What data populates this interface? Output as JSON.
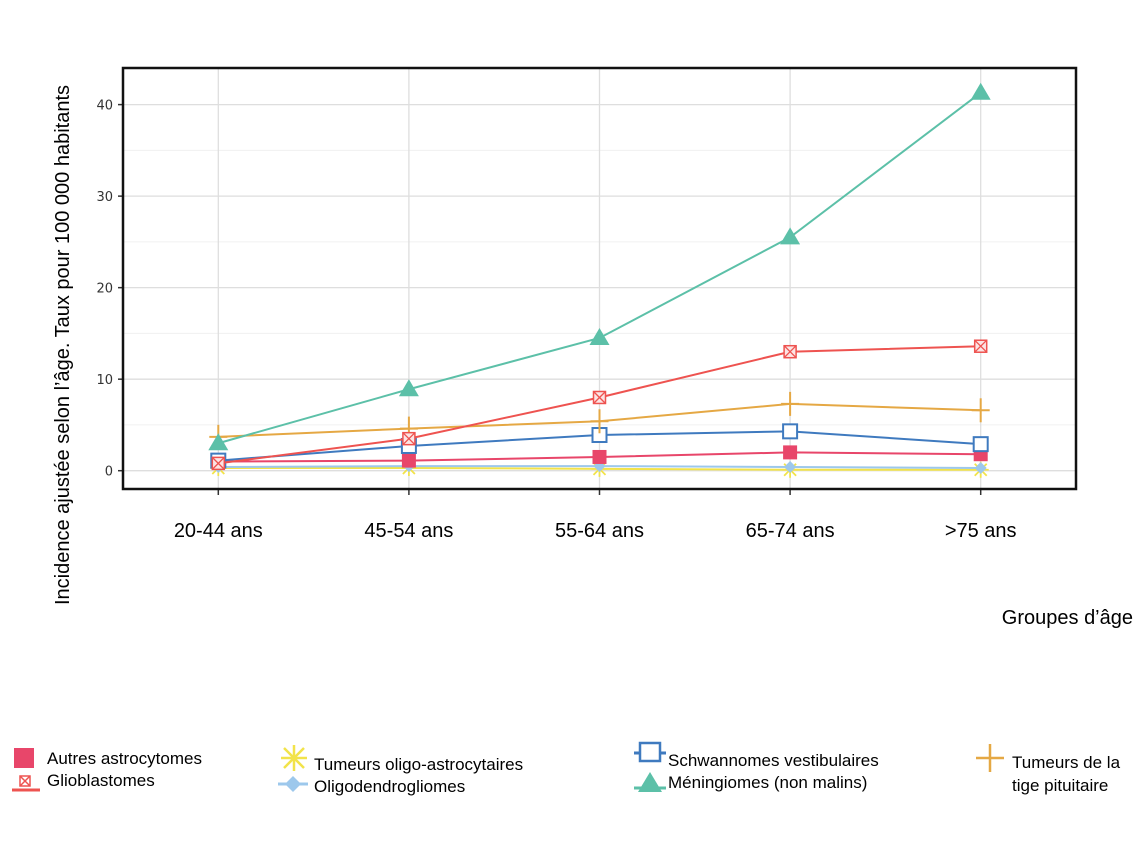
{
  "chart_data": {
    "type": "line",
    "title": "",
    "ylabel": "Incidence ajustée selon l’âge. Taux pour 100 000 habitants",
    "xlabel": "Groupes d’âge",
    "categories": [
      "20-44 ans",
      "45-54 ans",
      "55-64 ans",
      "65-74 ans",
      ">75 ans"
    ],
    "ylim": [
      -2,
      44
    ],
    "yticks": [
      0,
      10,
      20,
      30,
      40
    ],
    "grid": true,
    "legend_position": "bottom",
    "series": [
      {
        "name": "Méningiomes (non malins)",
        "color": "#5cc0a8",
        "marker": "triangle",
        "values": [
          3.0,
          8.9,
          14.5,
          25.5,
          41.3
        ]
      },
      {
        "name": "Glioblastomes",
        "color": "#ee5350",
        "marker": "boxx",
        "values": [
          0.8,
          3.5,
          8.0,
          13.0,
          13.6
        ]
      },
      {
        "name": "Tumeurs de la tige pituitaire",
        "color": "#e5a844",
        "marker": "plus",
        "values": [
          3.7,
          4.6,
          5.4,
          7.3,
          6.6
        ]
      },
      {
        "name": "Schwannomes vestibulaires",
        "color": "#3f7abf",
        "marker": "square",
        "values": [
          1.1,
          2.7,
          3.9,
          4.3,
          2.9
        ]
      },
      {
        "name": "Autres astrocytomes",
        "color": "#e8466a",
        "marker": "filledsquare",
        "values": [
          1.0,
          1.1,
          1.5,
          2.0,
          1.8
        ]
      },
      {
        "name": "Oligodendrogliomes",
        "color": "#9dc8ec",
        "marker": "diamond",
        "values": [
          0.4,
          0.5,
          0.5,
          0.4,
          0.3
        ]
      },
      {
        "name": "Tumeurs oligo-astrocytaires",
        "color": "#f2e34a",
        "marker": "star",
        "values": [
          0.3,
          0.3,
          0.2,
          0.1,
          0.1
        ]
      }
    ]
  },
  "legend": {
    "items": [
      {
        "label": "Autres astrocytomes"
      },
      {
        "label": "Glioblastomes"
      },
      {
        "label": "Tumeurs oligo-astrocytaires"
      },
      {
        "label": "Oligodendrogliomes"
      },
      {
        "label": "Schwannomes vestibulaires"
      },
      {
        "label": "Méningiomes (non malins)"
      },
      {
        "label_line1": "Tumeurs de la",
        "label_line2": "tige pituitaire"
      }
    ]
  }
}
